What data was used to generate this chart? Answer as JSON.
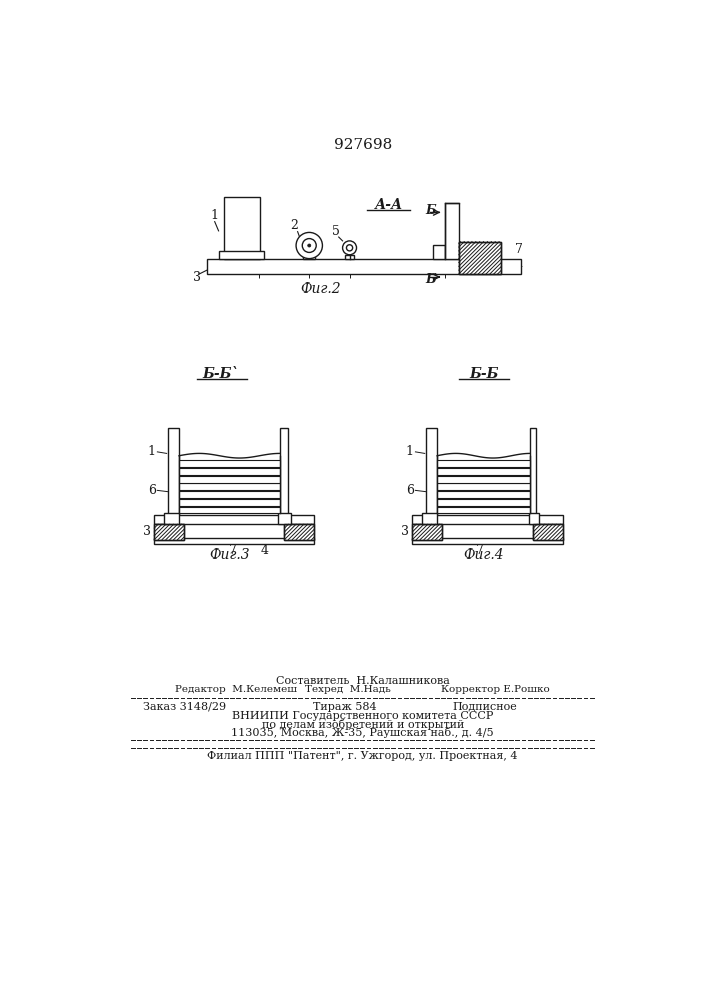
{
  "patent_number": "927698",
  "bg_color": "#ffffff",
  "line_color": "#1a1a1a",
  "footer_sestavitel": "Составитель  Н.Калашникова",
  "footer_redaktor": "Редактор  М.Келемеш",
  "footer_tehred": "Техред  М.Надь",
  "footer_korrektor": "Корректор Е.Рошко",
  "footer_zakaz": "Заказ 3148/29",
  "footer_tirazh": "Тираж 584",
  "footer_podpisnoe": "Подписное",
  "footer_vniip1": "ВНИИПИ Государственного комитета СССР",
  "footer_vniip2": "по делам изобретений и открытий",
  "footer_addr": "113035, Москва, Ж-35, Раушская наб., д. 4/5",
  "footer_filial": "Филиал ППП \"Патент\", г. Ужгород, ул. Проектная, 4"
}
